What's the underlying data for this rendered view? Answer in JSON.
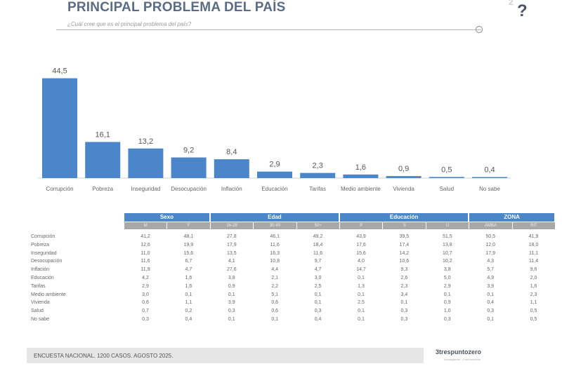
{
  "header": {
    "title": "PRINCIPAL PROBLEMA DEL PAÍS",
    "subtitle": "¿Cuál cree que es el principal problema del país?"
  },
  "chart_data": {
    "type": "bar",
    "categories": [
      "Corrupción",
      "Pobreza",
      "Inseguridad",
      "Desocupación",
      "Inflación",
      "Educación",
      "Tarifas",
      "Medio ambiente",
      "Vivienda",
      "Salud",
      "No sabe"
    ],
    "values": [
      "44,5",
      "16,1",
      "13,2",
      "9,2",
      "8,4",
      "2,9",
      "2,3",
      "1,6",
      "0,9",
      "0,5",
      "0,4"
    ],
    "numeric_values": [
      44.5,
      16.1,
      13.2,
      9.2,
      8.4,
      2.9,
      2.3,
      1.6,
      0.9,
      0.5,
      0.4
    ],
    "bar_color": "#4a86c9",
    "ylim": [
      0,
      45
    ]
  },
  "table": {
    "groups": [
      "Sexo",
      "Edad",
      "Educación",
      "ZONA"
    ],
    "columns": [
      "M",
      "F",
      "16-29",
      "30-49",
      "50+",
      "P",
      "S",
      "U",
      "AMBA",
      "INT"
    ],
    "rows": [
      {
        "label": "Corrupción",
        "values": [
          "41,2",
          "48,1",
          "27,8",
          "46,1",
          "49,2",
          "43,9",
          "39,5",
          "51,5",
          "50,5",
          "41,9"
        ]
      },
      {
        "label": "Pobreza",
        "values": [
          "12,6",
          "19,9",
          "17,9",
          "11,6",
          "18,4",
          "17,6",
          "17,4",
          "13,8",
          "12,0",
          "18,0"
        ]
      },
      {
        "label": "Inseguridad",
        "values": [
          "11,0",
          "15,6",
          "13,5",
          "16,3",
          "11,6",
          "15,6",
          "14,2",
          "10,7",
          "17,9",
          "11,1"
        ]
      },
      {
        "label": "Desocupación",
        "values": [
          "11,6",
          "6,7",
          "4,1",
          "10,8",
          "9,7",
          "4,0",
          "10,6",
          "10,2",
          "4,3",
          "11,4"
        ]
      },
      {
        "label": "Inflación",
        "values": [
          "11,9",
          "4,7",
          "27,6",
          "4,4",
          "4,7",
          "14,7",
          "9,3",
          "3,8",
          "5,7",
          "9,6"
        ]
      },
      {
        "label": "Educación",
        "values": [
          "4,2",
          "1,6",
          "3,8",
          "2,1",
          "3,0",
          "0,1",
          "2,6",
          "5,0",
          "4,9",
          "2,0"
        ]
      },
      {
        "label": "Tarifas",
        "values": [
          "2,9",
          "1,6",
          "0,9",
          "2,2",
          "2,5",
          "1,3",
          "2,3",
          "2,9",
          "3,9",
          "1,6"
        ]
      },
      {
        "label": "Medio ambiente",
        "values": [
          "3,0",
          "0,1",
          "0,1",
          "5,1",
          "0,1",
          "0,1",
          "3,4",
          "0,1",
          "0,1",
          "2,3"
        ]
      },
      {
        "label": "Vivienda",
        "values": [
          "0,6",
          "1,1",
          "3,9",
          "0,6",
          "0,1",
          "2,5",
          "0,1",
          "0,9",
          "0,4",
          "1,1"
        ]
      },
      {
        "label": "Salud",
        "values": [
          "0,7",
          "0,2",
          "0,3",
          "0,6",
          "0,3",
          "0,1",
          "0,3",
          "1,0",
          "0,3",
          "0,5"
        ]
      },
      {
        "label": "No sabe",
        "values": [
          "0,3",
          "0,4",
          "0,1",
          "0,1",
          "0,4",
          "0,1",
          "0,3",
          "0,3",
          "0,1",
          "0,5"
        ]
      }
    ]
  },
  "footer": {
    "text": "ENCUESTA NACIONAL. 1200 CASOS. AGOSTO 2025.",
    "brand": "trespuntozero",
    "brand_sub": "Investigación · Comunicación"
  },
  "colors": {
    "accent": "#4a86c9",
    "title": "#5a6d84",
    "subheader": "#a8a8a8"
  }
}
